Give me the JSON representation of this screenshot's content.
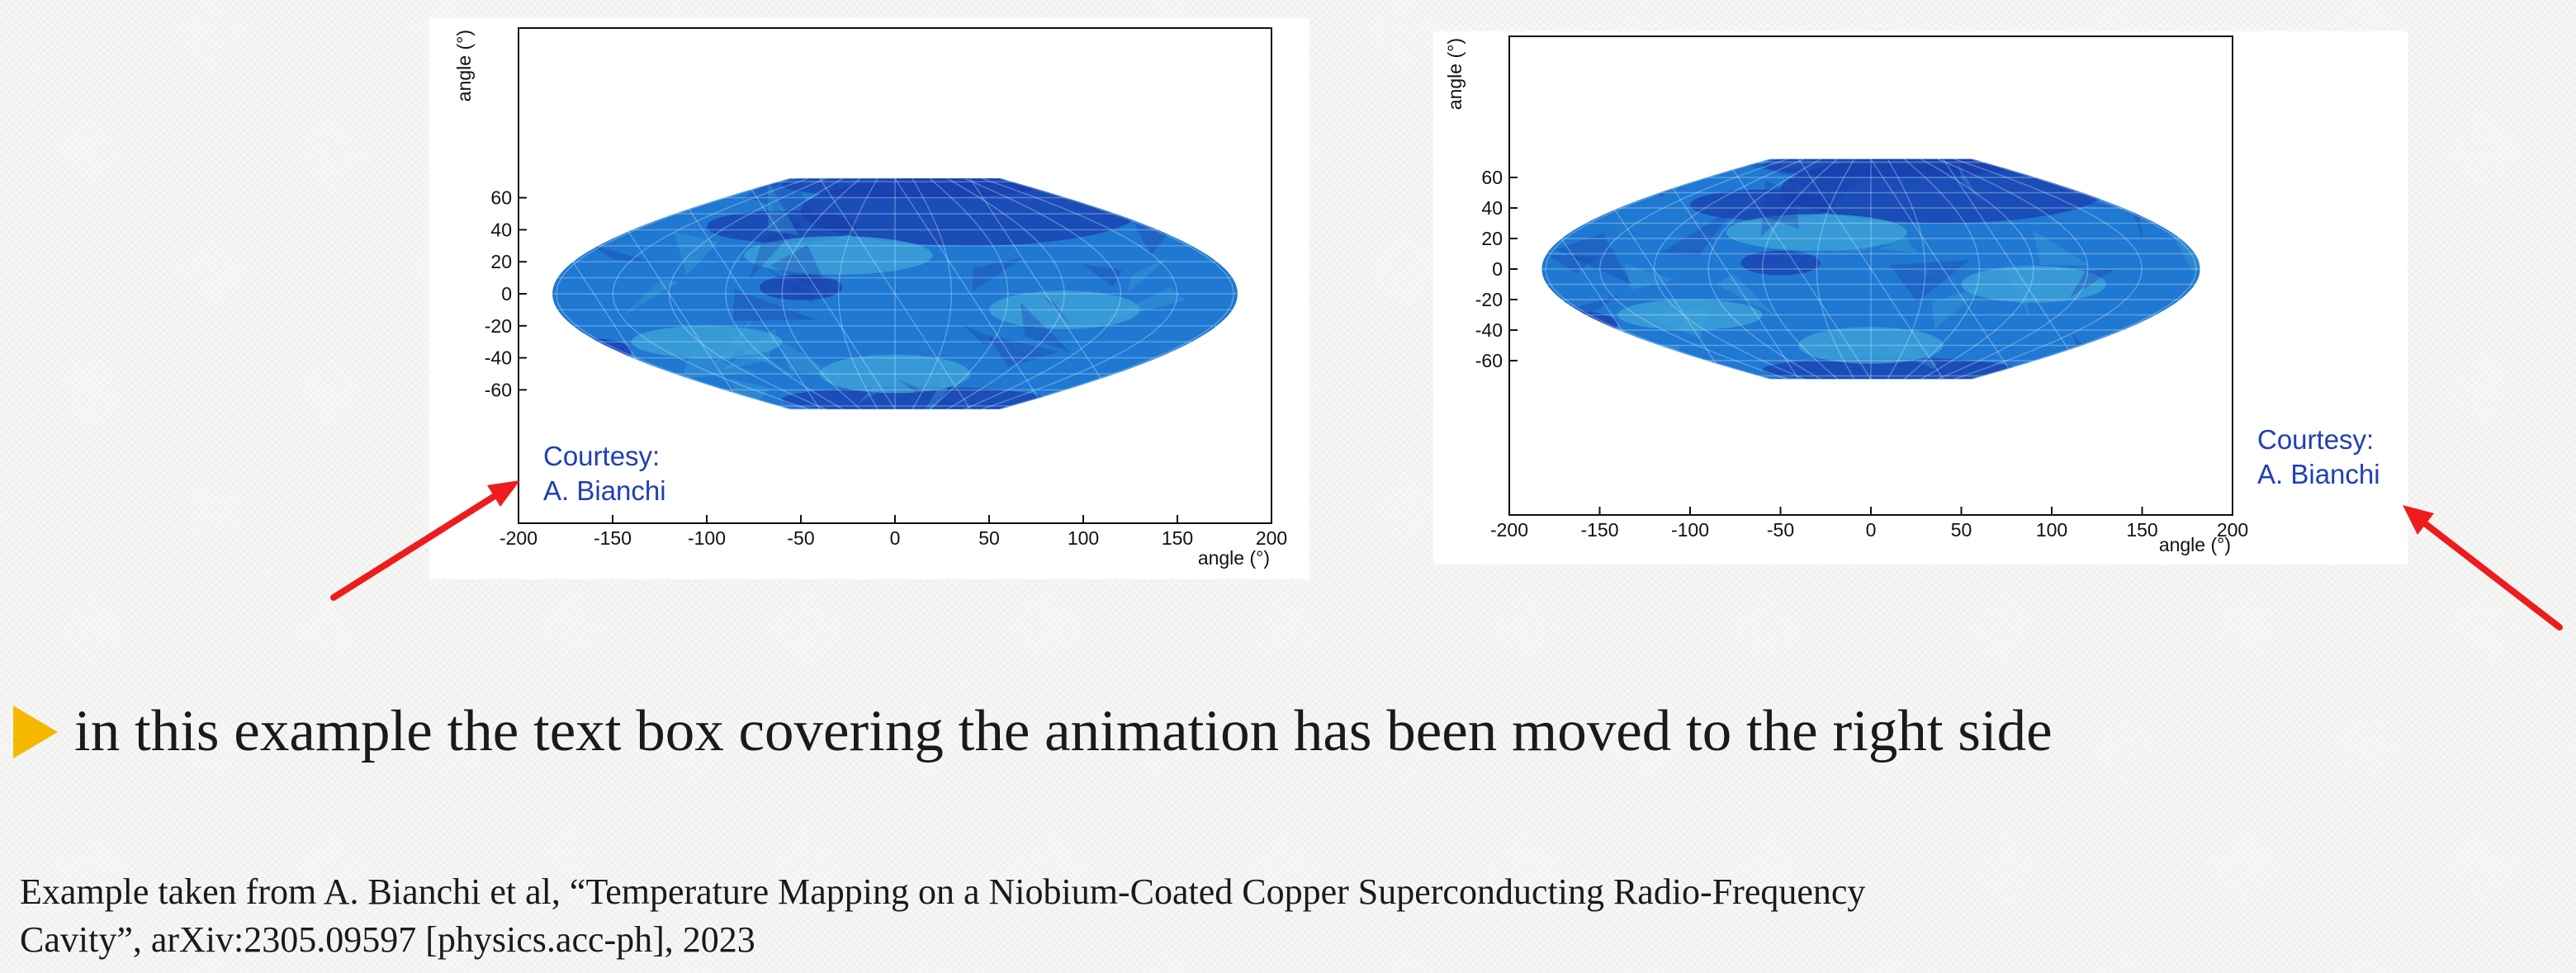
{
  "maps": [
    {
      "x_ticks": [
        "-200",
        "-150",
        "-100",
        "-50",
        "0",
        "50",
        "100",
        "150",
        "200"
      ],
      "y_ticks": [
        "60",
        "40",
        "20",
        "0",
        "-20",
        "-40",
        "-60"
      ],
      "x_label": "angle (°)",
      "y_label": "angle (°)",
      "courtesy": [
        "Courtesy:",
        "A. Bianchi"
      ]
    },
    {
      "x_ticks": [
        "-200",
        "-150",
        "-100",
        "-50",
        "0",
        "50",
        "100",
        "150",
        "200"
      ],
      "y_ticks": [
        "60",
        "40",
        "20",
        "0",
        "-20",
        "-40",
        "-60"
      ],
      "x_label": "angle (°)",
      "y_label": "angle (°)",
      "courtesy": [
        "Courtesy:",
        "A. Bianchi"
      ]
    }
  ],
  "bullet": {
    "text": "in this example the text box covering the animation has been moved to the right side"
  },
  "citation": {
    "line1": "Example taken from A. Bianchi et al, “Temperature Mapping on a Niobium-Coated Copper Superconducting Radio-Frequency",
    "line2": "Cavity”, arXiv:2305.09597 [physics.acc-ph], 2023"
  },
  "colors": {
    "map_fill": "#1f78d1",
    "map_dark": "#1a3fae",
    "map_light": "#3fa6d8",
    "courtesy_text": "#1f3fb5",
    "arrow": "#ee1c1c",
    "bullet_marker": "#f5b800"
  }
}
